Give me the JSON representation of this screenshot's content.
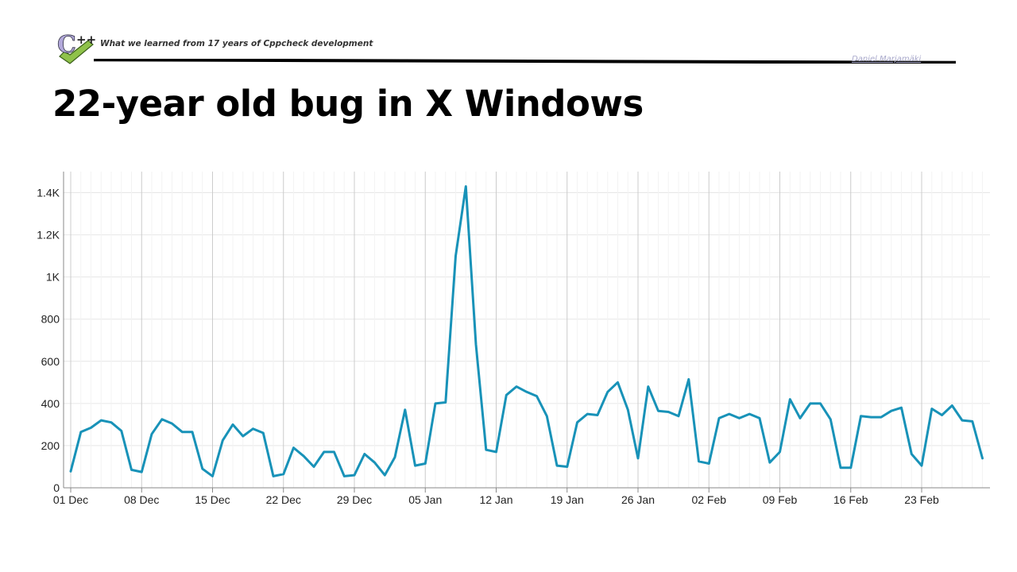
{
  "header": {
    "title": "What we learned from 17 years of Cppcheck development",
    "author": "Daniel Marjamäki",
    "logo_icon": "cpp-check-logo-icon"
  },
  "slide": {
    "title": "22-year old bug in X Windows"
  },
  "colors": {
    "line": "#1892b8",
    "grid": "#e6e6e6",
    "week_grid": "#cccccc",
    "axis": "#888888"
  },
  "chart_data": {
    "type": "line",
    "title": "",
    "xlabel": "",
    "ylabel": "",
    "ylim": [
      0,
      1500
    ],
    "grid": true,
    "legend": "none",
    "y_ticks": [
      {
        "value": 0,
        "label": "0"
      },
      {
        "value": 200,
        "label": "200"
      },
      {
        "value": 400,
        "label": "400"
      },
      {
        "value": 600,
        "label": "600"
      },
      {
        "value": 800,
        "label": "800"
      },
      {
        "value": 1000,
        "label": "1K"
      },
      {
        "value": 1200,
        "label": "1.2K"
      },
      {
        "value": 1400,
        "label": "1.4K"
      }
    ],
    "x_start": "01 Dec",
    "x_ticks": [
      {
        "day": 0,
        "label": "01 Dec"
      },
      {
        "day": 7,
        "label": "08 Dec"
      },
      {
        "day": 14,
        "label": "15 Dec"
      },
      {
        "day": 21,
        "label": "22 Dec"
      },
      {
        "day": 28,
        "label": "29 Dec"
      },
      {
        "day": 35,
        "label": "05 Jan"
      },
      {
        "day": 42,
        "label": "12 Jan"
      },
      {
        "day": 49,
        "label": "19 Jan"
      },
      {
        "day": 56,
        "label": "26 Jan"
      },
      {
        "day": 63,
        "label": "02 Feb"
      },
      {
        "day": 70,
        "label": "09 Feb"
      },
      {
        "day": 77,
        "label": "16 Feb"
      },
      {
        "day": 84,
        "label": "23 Feb"
      }
    ],
    "series": [
      {
        "values": [
          78,
          265,
          285,
          320,
          310,
          270,
          85,
          75,
          255,
          325,
          305,
          265,
          265,
          90,
          55,
          225,
          300,
          245,
          280,
          260,
          55,
          65,
          190,
          150,
          100,
          170,
          170,
          55,
          60,
          160,
          120,
          60,
          145,
          370,
          105,
          115,
          400,
          405,
          1100,
          1430,
          680,
          180,
          170,
          440,
          480,
          455,
          435,
          340,
          105,
          100,
          310,
          350,
          345,
          455,
          500,
          370,
          140,
          480,
          365,
          360,
          340,
          515,
          125,
          115,
          330,
          350,
          330,
          350,
          330,
          120,
          170,
          420,
          330,
          400,
          400,
          325,
          95,
          95,
          340,
          335,
          335,
          365,
          380,
          160,
          105,
          375,
          345,
          390,
          320,
          315,
          140
        ]
      }
    ]
  }
}
